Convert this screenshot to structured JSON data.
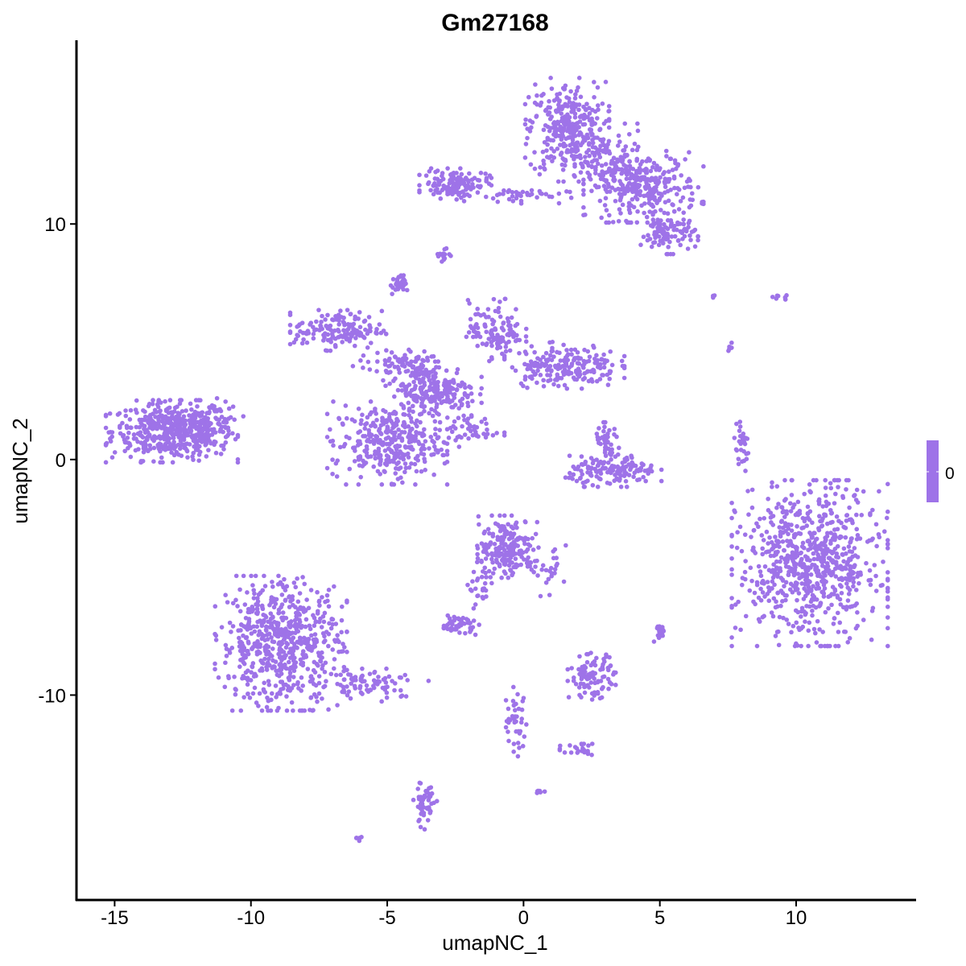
{
  "chart_data": {
    "type": "scatter",
    "title": "Gm27168",
    "xlabel": "umapNC_1",
    "ylabel": "umapNC_2",
    "xlim": [
      -16.4,
      14.4
    ],
    "ylim": [
      -18.7,
      17.8
    ],
    "xticks": [
      -15,
      -10,
      -5,
      0,
      5,
      10
    ],
    "yticks": [
      -10,
      0,
      10
    ],
    "xtick_labels": [
      "-15",
      "-10",
      "-5",
      "0",
      "5",
      "10"
    ],
    "ytick_labels": [
      "-10",
      "0",
      "10"
    ],
    "grid": false,
    "point_color": "#9e73e8",
    "expression_value": 0,
    "legend": {
      "position": "right",
      "type": "colorbar",
      "labels": [
        "0"
      ],
      "color": "#9e73e8"
    },
    "clusters": [
      {
        "center": [
          -12.9,
          1.2
        ],
        "spread": [
          1.1,
          0.6
        ],
        "n": 450
      },
      {
        "center": [
          -11.6,
          1.5
        ],
        "spread": [
          0.6,
          0.5
        ],
        "n": 80
      },
      {
        "center": [
          1.6,
          14.0
        ],
        "spread": [
          0.7,
          1.0
        ],
        "n": 320
      },
      {
        "center": [
          4.4,
          11.6
        ],
        "spread": [
          1.0,
          0.7
        ],
        "n": 300
      },
      {
        "center": [
          5.3,
          9.6
        ],
        "spread": [
          0.5,
          0.4
        ],
        "n": 100
      },
      {
        "center": [
          3.2,
          12.5
        ],
        "spread": [
          0.6,
          0.8
        ],
        "n": 80
      },
      {
        "center": [
          -2.5,
          11.7
        ],
        "spread": [
          0.6,
          0.3
        ],
        "n": 130
      },
      {
        "center": [
          -0.2,
          11.2
        ],
        "spread": [
          0.9,
          0.15
        ],
        "n": 40
      },
      {
        "center": [
          -3.0,
          8.7
        ],
        "spread": [
          0.15,
          0.2
        ],
        "n": 15
      },
      {
        "center": [
          -4.6,
          7.4
        ],
        "spread": [
          0.15,
          0.2
        ],
        "n": 30
      },
      {
        "center": [
          -6.8,
          5.5
        ],
        "spread": [
          0.8,
          0.4
        ],
        "n": 150
      },
      {
        "center": [
          -3.3,
          2.9
        ],
        "spread": [
          0.8,
          0.6
        ],
        "n": 220
      },
      {
        "center": [
          -5.0,
          0.7
        ],
        "spread": [
          1.0,
          0.8
        ],
        "n": 320
      },
      {
        "center": [
          -4.5,
          4.0
        ],
        "spread": [
          0.8,
          0.3
        ],
        "n": 80
      },
      {
        "center": [
          -1.0,
          5.5
        ],
        "spread": [
          0.5,
          0.6
        ],
        "n": 120
      },
      {
        "center": [
          1.5,
          4.0
        ],
        "spread": [
          1.0,
          0.45
        ],
        "n": 200
      },
      {
        "center": [
          -1.8,
          1.2
        ],
        "spread": [
          0.5,
          0.3
        ],
        "n": 40
      },
      {
        "center": [
          3.3,
          -0.5
        ],
        "spread": [
          0.8,
          0.3
        ],
        "n": 150
      },
      {
        "center": [
          3.1,
          0.7
        ],
        "spread": [
          0.25,
          0.4
        ],
        "n": 40
      },
      {
        "center": [
          8.0,
          0.5
        ],
        "spread": [
          0.15,
          0.5
        ],
        "n": 30
      },
      {
        "center": [
          10.5,
          -4.4
        ],
        "spread": [
          1.3,
          1.6
        ],
        "n": 750
      },
      {
        "center": [
          -8.9,
          -7.8
        ],
        "spread": [
          1.1,
          1.3
        ],
        "n": 620
      },
      {
        "center": [
          -5.6,
          -9.5
        ],
        "spread": [
          1.0,
          0.35
        ],
        "n": 80
      },
      {
        "center": [
          -0.6,
          -3.7
        ],
        "spread": [
          0.5,
          0.6
        ],
        "n": 200
      },
      {
        "center": [
          -1.5,
          -5.4
        ],
        "spread": [
          0.25,
          0.5
        ],
        "n": 30
      },
      {
        "center": [
          0.9,
          -4.7
        ],
        "spread": [
          0.35,
          0.5
        ],
        "n": 30
      },
      {
        "center": [
          -2.4,
          -7.0
        ],
        "spread": [
          0.35,
          0.2
        ],
        "n": 50
      },
      {
        "center": [
          2.5,
          -9.2
        ],
        "spread": [
          0.4,
          0.45
        ],
        "n": 100
      },
      {
        "center": [
          -0.3,
          -11.2
        ],
        "spread": [
          0.25,
          0.7
        ],
        "n": 40
      },
      {
        "center": [
          2.1,
          -12.4
        ],
        "spread": [
          0.35,
          0.15
        ],
        "n": 25
      },
      {
        "center": [
          -3.6,
          -14.6
        ],
        "spread": [
          0.2,
          0.5
        ],
        "n": 50
      },
      {
        "center": [
          5.0,
          -7.3
        ],
        "spread": [
          0.1,
          0.25
        ],
        "n": 20
      },
      {
        "center": [
          -6.1,
          -16.1
        ],
        "spread": [
          0.08,
          0.05
        ],
        "n": 6
      },
      {
        "center": [
          0.6,
          -14.1
        ],
        "spread": [
          0.08,
          0.05
        ],
        "n": 6
      },
      {
        "center": [
          9.5,
          6.8
        ],
        "spread": [
          0.2,
          0.1
        ],
        "n": 8
      },
      {
        "center": [
          7.0,
          6.9
        ],
        "spread": [
          0.05,
          0.05
        ],
        "n": 3
      },
      {
        "center": [
          7.6,
          4.8
        ],
        "spread": [
          0.05,
          0.1
        ],
        "n": 5
      }
    ]
  }
}
